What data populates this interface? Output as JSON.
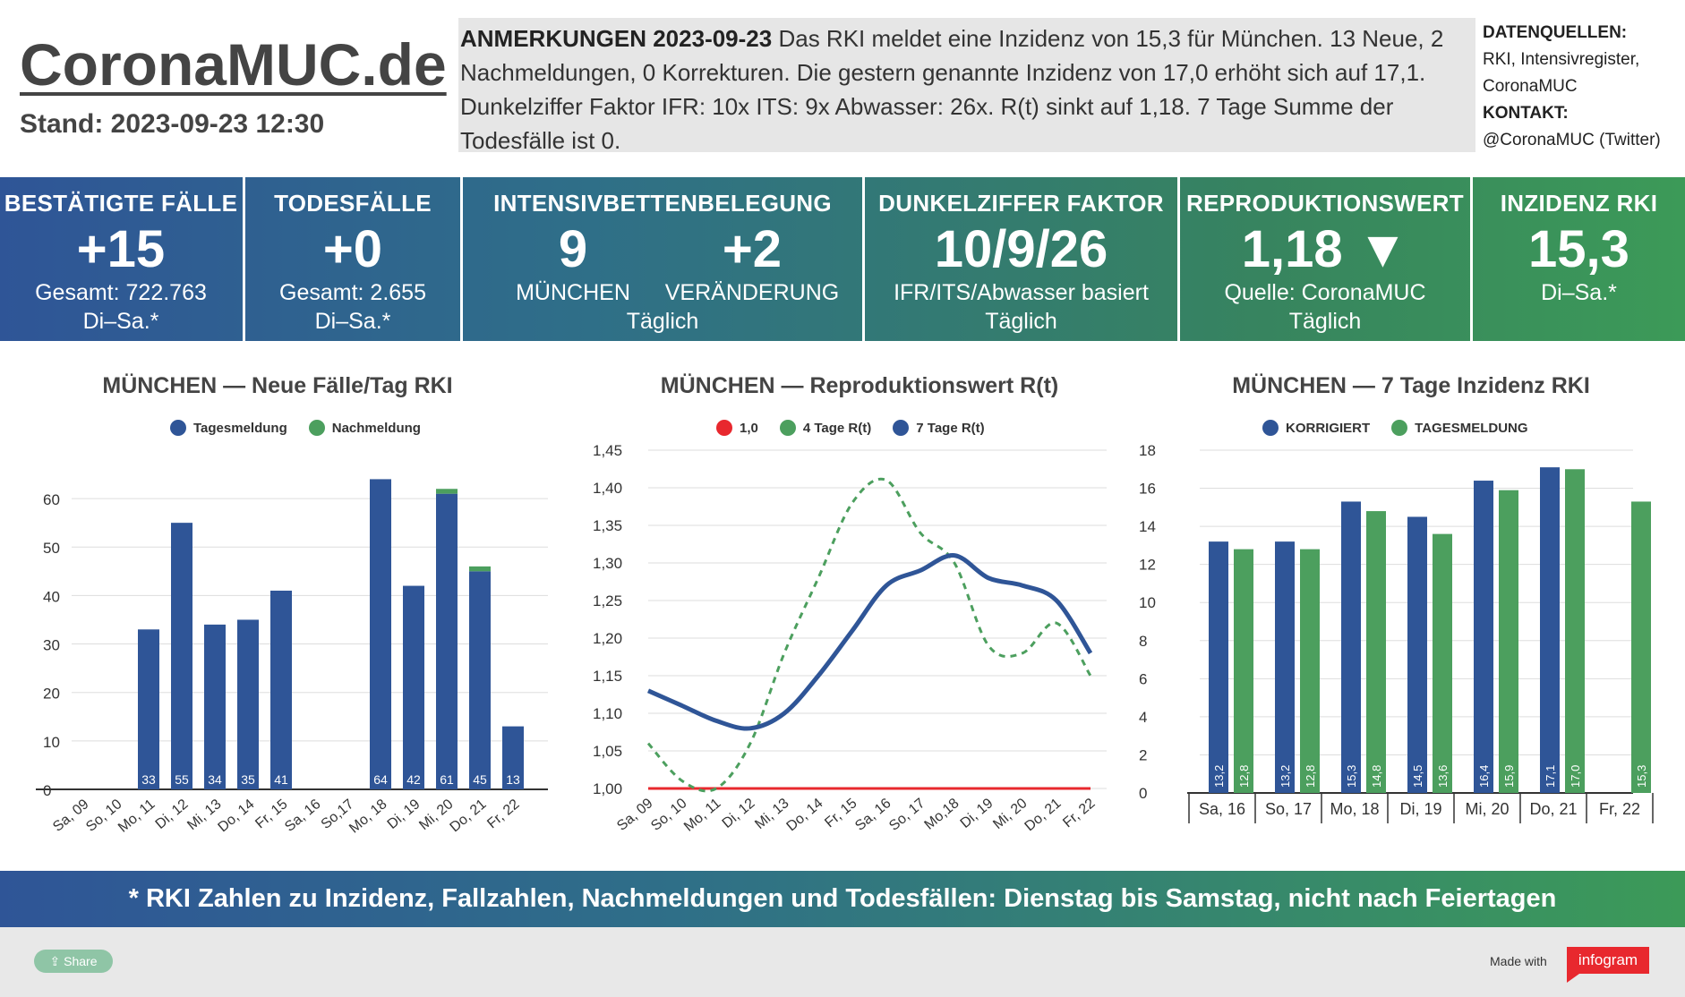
{
  "header": {
    "logo": "CoronaMUC.de",
    "stand": "Stand: 2023-09-23 12:30",
    "notes_title": "ANMERKUNGEN 2023-09-23",
    "notes_text": " Das RKI meldet eine Inzidenz von 15,3 für München. 13 Neue, 2 Nachmeldungen, 0 Korrekturen. Die gestern genannte Inzidenz von 17,0 erhöht sich auf 17,1. Dunkelziffer Faktor IFR: 10x ITS: 9x Abwasser: 26x. R(t) sinkt auf 1,18. 7 Tage Summe der Todesfälle ist 0.",
    "sources_title": "DATENQUELLEN:",
    "sources_line1": "RKI, Intensivregister,",
    "sources_line2": "CoronaMUC",
    "contact_title": "KONTAKT:",
    "contact_value": "@CoronaMUC (Twitter)"
  },
  "kpis": {
    "cases": {
      "title": "BESTÄTIGTE FÄLLE",
      "value": "+15",
      "sub1": "Gesamt: 722.763",
      "sub2": "Di–Sa.*"
    },
    "deaths": {
      "title": "TODESFÄLLE",
      "value": "+0",
      "sub1": "Gesamt: 2.655",
      "sub2": "Di–Sa.*"
    },
    "icu": {
      "title": "INTENSIVBETTENBELEGUNG",
      "value_left": "9",
      "label_left": "MÜNCHEN",
      "value_right": "+2",
      "label_right": "VERÄNDERUNG",
      "sub": "Täglich"
    },
    "dark": {
      "title": "DUNKELZIFFER FAKTOR",
      "value": "10/9/26",
      "sub1": "IFR/ITS/Abwasser basiert",
      "sub2": "Täglich"
    },
    "r": {
      "title": "REPRODUKTIONSWERT",
      "value": "1,18 ▼",
      "sub1": "Quelle: CoronaMUC",
      "sub2": "Täglich"
    },
    "incidence": {
      "title": "INZIDENZ RKI",
      "value": "15,3",
      "sub1": "Di–Sa.*"
    }
  },
  "footer": {
    "banner": "* RKI Zahlen zu Inzidenz, Fallzahlen, Nachmeldungen und Todesfällen: Dienstag bis Samstag, nicht nach Feiertagen",
    "share": "Share",
    "made_with": "Made with",
    "brand": "infogram"
  },
  "colors": {
    "blue": "#2f5597",
    "green": "#4c9f5e",
    "red": "#e8282e",
    "grid": "#dddddd"
  },
  "chart_data": [
    {
      "type": "bar",
      "title": "MÜNCHEN — Neue Fälle/Tag RKI",
      "categories": [
        "Sa, 09",
        "So, 10",
        "Mo, 11",
        "Di, 12",
        "Mi, 13",
        "Do, 14",
        "Fr, 15",
        "Sa, 16",
        "So,17",
        "Mo, 18",
        "Di, 19",
        "Mi, 20",
        "Do, 21",
        "Fr, 22"
      ],
      "series": [
        {
          "name": "Tagesmeldung",
          "values": [
            0,
            0,
            33,
            55,
            34,
            35,
            41,
            0,
            0,
            64,
            42,
            61,
            45,
            13
          ]
        },
        {
          "name": "Nachmeldung",
          "values": [
            0,
            0,
            0,
            0,
            0,
            0,
            0,
            0,
            0,
            0,
            0,
            1,
            1,
            0
          ]
        }
      ],
      "data_labels": [
        "",
        "",
        "33",
        "55",
        "34",
        "35",
        "41",
        "",
        "",
        "64",
        "42",
        "61",
        "45",
        "13"
      ],
      "yticks": [
        "0",
        "10",
        "20",
        "30",
        "40",
        "50",
        "60"
      ],
      "ylim": [
        0,
        65
      ],
      "stacked": true,
      "legend": "top"
    },
    {
      "type": "line",
      "title": "MÜNCHEN — Reproduktionswert R(t)",
      "categories": [
        "Sa, 09",
        "So, 10",
        "Mo, 11",
        "Di, 12",
        "Mi, 13",
        "Do, 14",
        "Fr, 15",
        "Sa, 16",
        "So, 17",
        "Mo,18",
        "Di, 19",
        "Mi, 20",
        "Do, 21",
        "Fr, 22"
      ],
      "series": [
        {
          "name": "1,0",
          "values": [
            1.0,
            1.0,
            1.0,
            1.0,
            1.0,
            1.0,
            1.0,
            1.0,
            1.0,
            1.0,
            1.0,
            1.0,
            1.0,
            1.0
          ]
        },
        {
          "name": "4 Tage R(t)",
          "values": [
            1.06,
            1.01,
            1.0,
            1.06,
            1.18,
            1.28,
            1.38,
            1.41,
            1.34,
            1.3,
            1.19,
            1.18,
            1.22,
            1.15
          ]
        },
        {
          "name": "7 Tage R(t)",
          "values": [
            1.13,
            1.11,
            1.09,
            1.08,
            1.1,
            1.15,
            1.21,
            1.27,
            1.29,
            1.31,
            1.28,
            1.27,
            1.25,
            1.18
          ]
        }
      ],
      "yticks": [
        "1,00",
        "1,05",
        "1,10",
        "1,15",
        "1,20",
        "1,25",
        "1,30",
        "1,35",
        "1,40",
        "1,45"
      ],
      "ylim": [
        1.0,
        1.45
      ],
      "legend": "top"
    },
    {
      "type": "bar",
      "title": "MÜNCHEN — 7 Tage Inzidenz RKI",
      "categories": [
        "Sa, 16",
        "So, 17",
        "Mo, 18",
        "Di, 19",
        "Mi, 20",
        "Do, 21",
        "Fr, 22"
      ],
      "series": [
        {
          "name": "KORRIGIERT",
          "values": [
            13.2,
            13.2,
            15.3,
            14.5,
            16.4,
            17.1,
            null
          ],
          "labels": [
            "13,2",
            "13,2",
            "15,3",
            "14,5",
            "16,4",
            "17,1",
            ""
          ]
        },
        {
          "name": "TAGESMELDUNG",
          "values": [
            12.8,
            12.8,
            14.8,
            13.6,
            15.9,
            17.0,
            15.3
          ],
          "labels": [
            "12,8",
            "12,8",
            "14,8",
            "13,6",
            "15,9",
            "17,0",
            "15,3"
          ]
        }
      ],
      "yticks": [
        "0",
        "2",
        "4",
        "6",
        "8",
        "10",
        "12",
        "14",
        "16",
        "18"
      ],
      "ylim": [
        0,
        18
      ],
      "legend": "top"
    }
  ]
}
